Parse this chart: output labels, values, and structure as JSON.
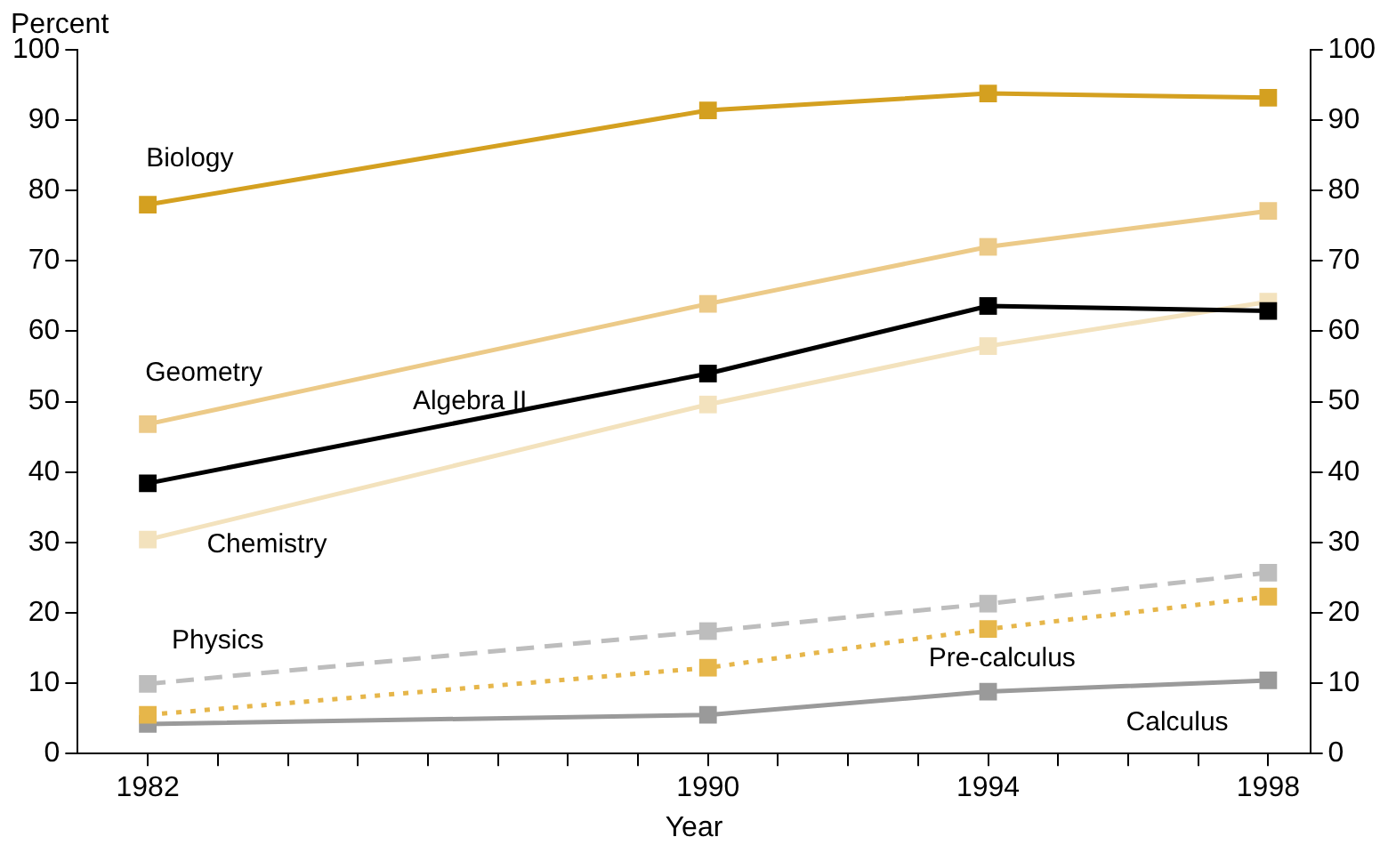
{
  "chart_data": {
    "type": "line",
    "ylabel": "Percent",
    "xlabel": "Year",
    "x": [
      1982,
      1990,
      1994,
      1998
    ],
    "series": [
      {
        "name": "Biology",
        "color": "#d4a020",
        "values": [
          78,
          91.4,
          93.8,
          93.2
        ]
      },
      {
        "name": "Geometry",
        "color": "#ecca88",
        "values": [
          46.8,
          63.9,
          72,
          77.1
        ]
      },
      {
        "name": "Algebra II",
        "color": "#000000",
        "values": [
          38.4,
          54,
          63.6,
          62.9
        ]
      },
      {
        "name": "Chemistry",
        "color": "#f3e2bd",
        "values": [
          30.4,
          49.6,
          57.9,
          64.2
        ]
      },
      {
        "name": "Physics",
        "color": "#bdbdbd",
        "values": [
          9.9,
          17.4,
          21.3,
          25.7
        ],
        "line_style": "dashed"
      },
      {
        "name": "Pre-calculus",
        "color": "#e6b64a",
        "values": [
          5.5,
          12.2,
          17.7,
          22.3
        ],
        "line_style": "dotted"
      },
      {
        "name": "Calculus",
        "color": "#9a9a9a",
        "values": [
          4.2,
          5.5,
          8.8,
          10.4
        ]
      }
    ],
    "xlim": [
      1981,
      1998.6
    ],
    "xticks": [
      1982,
      {
        "value": 1983,
        "label": null
      },
      {
        "value": 1984,
        "label": null
      },
      {
        "value": 1985,
        "label": null
      },
      {
        "value": 1986,
        "label": null
      },
      {
        "value": 1987,
        "label": null
      },
      {
        "value": 1988,
        "label": null
      },
      {
        "value": 1989,
        "label": null
      },
      1990,
      {
        "value": 1991,
        "label": null
      },
      {
        "value": 1992,
        "label": null
      },
      {
        "value": 1993,
        "label": null
      },
      1994,
      {
        "value": 1995,
        "label": null
      },
      {
        "value": 1996,
        "label": null
      },
      {
        "value": 1997,
        "label": null
      },
      1998
    ],
    "ylim": [
      0,
      100
    ],
    "yticks": [
      0,
      10,
      20,
      30,
      40,
      50,
      60,
      70,
      80,
      90,
      100
    ],
    "y2lim": [
      0,
      100
    ],
    "y2ticks": [
      0,
      10,
      20,
      30,
      40,
      50,
      60,
      70,
      80,
      90,
      100
    ],
    "grid": false,
    "legend": false,
    "marker": "square"
  }
}
